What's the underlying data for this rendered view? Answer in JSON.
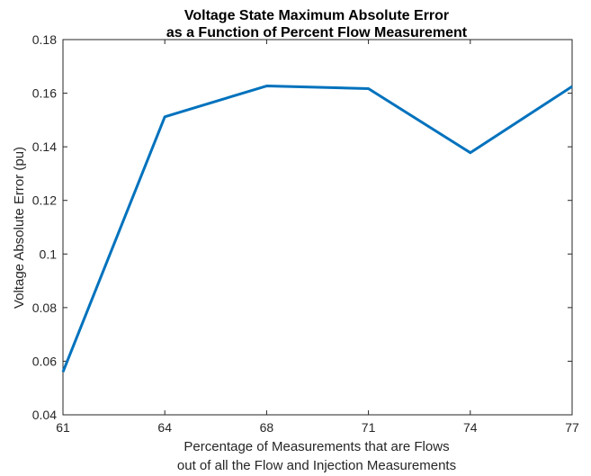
{
  "chart_data": {
    "type": "line",
    "title": [
      "Voltage State Maximum Absolute Error",
      "as a Function of Percent Flow Measurement"
    ],
    "xlabel": [
      "Percentage of Measurements that are Flows",
      "out of all the Flow and Injection Measurements"
    ],
    "ylabel": "Voltage Absolute Error (pu)",
    "x_tick_labels": [
      "61",
      "64",
      "68",
      "71",
      "74",
      "77"
    ],
    "y_tick_labels": [
      "0.04",
      "0.06",
      "0.08",
      "0.1",
      "0.12",
      "0.14",
      "0.16",
      "0.18"
    ],
    "y_ticks": [
      0.04,
      0.06,
      0.08,
      0.1,
      0.12,
      0.14,
      0.16,
      0.18
    ],
    "ylim": [
      0.04,
      0.18
    ],
    "grid": false,
    "series": [
      {
        "color": "#0072BD",
        "x": [
          "61",
          "64",
          "68",
          "71",
          "74",
          "77"
        ],
        "values": [
          0.056,
          0.1512,
          0.1627,
          0.1617,
          0.1378,
          0.1625
        ]
      }
    ]
  }
}
